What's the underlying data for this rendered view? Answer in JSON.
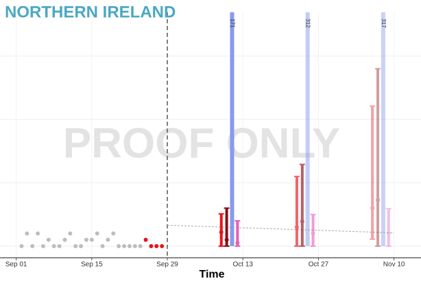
{
  "chart_data": {
    "type": "forecast",
    "title": "NORTHERN IRELAND",
    "xlabel": "Time",
    "watermark": "PROOF ONLY",
    "xlim": [
      "08-29",
      "11-15"
    ],
    "ylim": [
      -1.83,
      36.9
    ],
    "xticks": [
      {
        "value": "09-01",
        "label": "Sep 01"
      },
      {
        "value": "09-15",
        "label": "Sep 15"
      },
      {
        "value": "09-29",
        "label": "Sep 29"
      },
      {
        "value": "10-13",
        "label": "Oct 13"
      },
      {
        "value": "10-27",
        "label": "Oct 27"
      },
      {
        "value": "11-10",
        "label": "Nov 10"
      }
    ],
    "ygrid": [
      0,
      10,
      20,
      30
    ],
    "grid": true,
    "forecast_start": "09-29",
    "points": [
      {
        "color": "#bdbdbd",
        "x": [
          "09-02",
          "09-03",
          "09-04",
          "09-05",
          "09-06",
          "09-07",
          "09-08",
          "09-09",
          "09-10",
          "09-11",
          "09-12",
          "09-13",
          "09-14",
          "09-15",
          "09-16",
          "09-17",
          "09-18",
          "09-19",
          "09-20",
          "09-21",
          "09-22",
          "09-23",
          "09-24"
        ],
        "values": [
          0,
          2,
          0,
          2,
          0,
          1,
          0,
          0,
          1,
          2,
          0,
          0,
          1,
          1,
          2,
          0,
          1,
          2,
          0,
          0,
          0,
          0,
          0
        ]
      },
      {
        "color": "#e8141b",
        "x": [
          "09-25",
          "09-26",
          "09-27",
          "09-28"
        ],
        "values": [
          1,
          0,
          0,
          0
        ]
      }
    ],
    "trend": {
      "color": "#aaaaaa",
      "x": [
        "09-29",
        "10-13",
        "10-27",
        "11-10"
      ],
      "values": [
        3.3,
        2.9,
        2.5,
        2.1
      ]
    },
    "intervals": [
      {
        "color": "#e8141b",
        "width": 4,
        "x": [
          "10-09",
          "10-23",
          "11-06"
        ],
        "lower": [
          0,
          0,
          1.1
        ],
        "median": [
          2.2,
          3,
          6
        ],
        "upper": [
          5.1,
          11,
          22.1
        ],
        "opacity": [
          1,
          0.65,
          0.4
        ]
      },
      {
        "color": "#8b0d14",
        "width": 4,
        "x": [
          "10-10",
          "10-24",
          "11-07"
        ],
        "lower": [
          0,
          0,
          0
        ],
        "median": [
          1,
          3.9,
          7.3
        ],
        "upper": [
          6,
          12.9,
          28
        ],
        "opacity": [
          1,
          0.65,
          0.4
        ]
      },
      {
        "color": "#8899ee",
        "width": 6,
        "x": [
          "10-11",
          "10-25",
          "11-08"
        ],
        "lower": [
          0,
          0,
          0
        ],
        "upper": [
          171,
          312,
          317
        ],
        "opacity": [
          1,
          0.5,
          0.45
        ]
      },
      {
        "color": "#e35fb8",
        "width": 4,
        "x": [
          "10-12",
          "10-26",
          "11-09"
        ],
        "lower": [
          0,
          0,
          0
        ],
        "median": [
          0.5,
          2,
          2
        ],
        "upper": [
          4,
          5,
          5.9
        ],
        "opacity": [
          1,
          0.6,
          0.4
        ]
      }
    ]
  }
}
